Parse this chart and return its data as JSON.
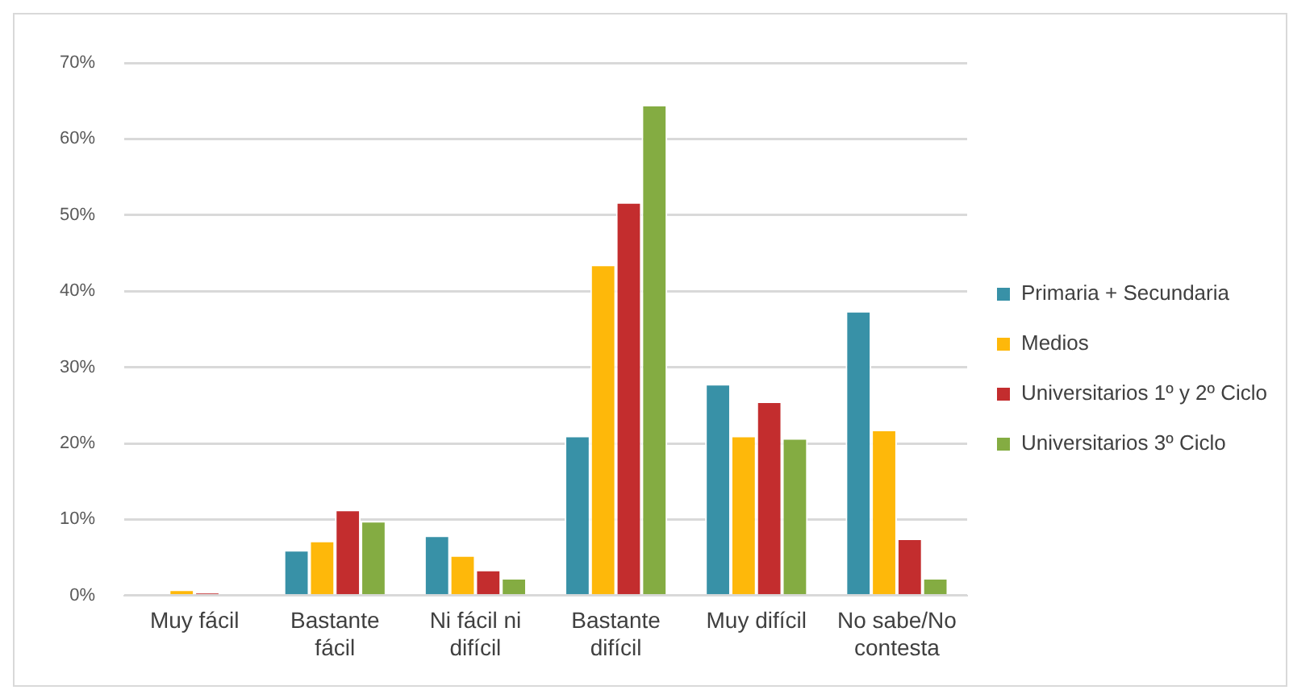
{
  "chart_data": {
    "type": "bar",
    "categories": [
      "Muy fácil",
      "Bastante fácil",
      "Ni fácil ni difícil",
      "Bastante difícil",
      "Muy difícil",
      "No sabe/No contesta"
    ],
    "series": [
      {
        "name": "Primaria + Secundaria",
        "color": "#3891a7",
        "values": [
          0,
          6.0,
          7.9,
          21.0,
          27.8,
          37.4
        ]
      },
      {
        "name": "Medios",
        "color": "#feb80a",
        "values": [
          0.8,
          7.2,
          5.3,
          43.5,
          21.0,
          21.8
        ]
      },
      {
        "name": "Universitarios 1º y 2º Ciclo",
        "color": "#c32d2e",
        "values": [
          0.4,
          11.3,
          3.4,
          51.7,
          25.5,
          7.5
        ]
      },
      {
        "name": "Universitarios 3º Ciclo",
        "color": "#84ac42",
        "values": [
          0,
          9.8,
          2.3,
          64.5,
          20.7,
          2.3
        ]
      }
    ],
    "ylim": [
      0,
      70
    ],
    "yticks": [
      {
        "value": 0,
        "label": "0%"
      },
      {
        "value": 10,
        "label": "10%"
      },
      {
        "value": 20,
        "label": "20%"
      },
      {
        "value": 30,
        "label": "30%"
      },
      {
        "value": 40,
        "label": "40%"
      },
      {
        "value": 50,
        "label": "50%"
      },
      {
        "value": 60,
        "label": "60%"
      },
      {
        "value": 70,
        "label": "70%"
      }
    ],
    "grid": "y",
    "legend": "right"
  }
}
